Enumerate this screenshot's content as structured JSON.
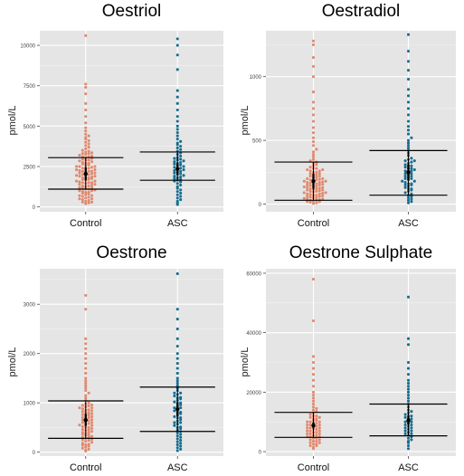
{
  "chart_data": [
    {
      "type": "scatter",
      "title": "Oestriol",
      "ylabel": "pmol/L",
      "xlabel": "",
      "categories": [
        "Control",
        "ASC"
      ],
      "yticks": [
        0,
        2500,
        5000,
        7500,
        10000
      ],
      "ytick_labels": [
        "0",
        "2500",
        "5000",
        "7500",
        "10000"
      ],
      "ylim": [
        -300,
        10900
      ],
      "grid": true,
      "series": [
        {
          "color": "#e0896f",
          "mean": 2050,
          "ci": [
            1650,
            2450
          ],
          "sd": [
            1100,
            3050
          ],
          "max_y": 10600,
          "values": [
            200,
            250,
            300,
            350,
            400,
            450,
            500,
            550,
            600,
            650,
            700,
            750,
            800,
            850,
            900,
            950,
            1000,
            1050,
            1100,
            1150,
            1200,
            1250,
            1300,
            1350,
            1400,
            1450,
            1500,
            1550,
            1600,
            1650,
            1700,
            1750,
            1800,
            1850,
            1900,
            1950,
            2000,
            2050,
            2100,
            2150,
            2200,
            2250,
            2300,
            2350,
            2400,
            2450,
            2500,
            2550,
            2600,
            2650,
            2700,
            2750,
            2800,
            2850,
            2900,
            2950,
            3000,
            3050,
            3100,
            3150,
            3200,
            3250,
            3300,
            3350,
            3400,
            3450,
            3500,
            3600,
            3700,
            3800,
            3900,
            4000,
            4100,
            4200,
            4300,
            4400,
            4500,
            4700,
            4900,
            5200,
            5600,
            6000,
            6400,
            7000,
            7400,
            7600,
            10600,
            300,
            500,
            700,
            900,
            1100,
            1300,
            1500,
            1700,
            1900,
            2100,
            2300,
            2500,
            2700,
            2900,
            3100,
            3300,
            1200,
            1400,
            1600,
            1800,
            2000,
            2200,
            2400,
            1000,
            1500,
            2000,
            2500,
            1800,
            2200
          ]
        },
        {
          "color": "#156d8f",
          "mean": 2350,
          "ci": [
            2000,
            2700
          ],
          "sd": [
            1650,
            3400
          ],
          "max_y": 10400,
          "values": [
            150,
            250,
            350,
            450,
            550,
            650,
            750,
            850,
            950,
            1050,
            1150,
            1250,
            1350,
            1450,
            1550,
            1650,
            1750,
            1850,
            1950,
            2050,
            2150,
            2250,
            2350,
            2450,
            2550,
            2650,
            2750,
            2850,
            2950,
            3050,
            3150,
            3250,
            3350,
            3450,
            3550,
            3650,
            3750,
            3850,
            3950,
            4050,
            4200,
            4400,
            4600,
            4800,
            5000,
            5300,
            5600,
            6000,
            6400,
            6800,
            7200,
            8500,
            9400,
            10000,
            10400,
            1800,
            2000,
            2200,
            2400,
            2600,
            2800,
            3000,
            1600,
            2100,
            2500,
            2900,
            1900,
            2300,
            2700,
            1700
          ]
        }
      ]
    },
    {
      "type": "scatter",
      "title": "Oestradiol",
      "ylabel": "pmol/L",
      "xlabel": "",
      "categories": [
        "Control",
        "ASC"
      ],
      "yticks": [
        0,
        500,
        1000
      ],
      "ytick_labels": [
        "0",
        "500",
        "1000"
      ],
      "ylim": [
        -60,
        1360
      ],
      "grid": true,
      "series": [
        {
          "color": "#e0896f",
          "mean": 180,
          "ci": [
            120,
            240
          ],
          "sd": [
            30,
            330
          ],
          "max_y": 1280,
          "values": [
            5,
            10,
            15,
            20,
            25,
            30,
            35,
            40,
            45,
            50,
            55,
            60,
            65,
            70,
            75,
            80,
            85,
            90,
            95,
            100,
            105,
            110,
            115,
            120,
            125,
            130,
            135,
            140,
            145,
            150,
            155,
            160,
            165,
            170,
            175,
            180,
            185,
            190,
            195,
            200,
            210,
            220,
            230,
            240,
            250,
            260,
            270,
            280,
            290,
            300,
            310,
            320,
            330,
            340,
            350,
            370,
            390,
            410,
            430,
            460,
            490,
            520,
            560,
            600,
            650,
            700,
            750,
            800,
            880,
            1000,
            1080,
            1150,
            1250,
            1280,
            20,
            40,
            60,
            80,
            100,
            120,
            140,
            160,
            180,
            200,
            220,
            240,
            260,
            280,
            50,
            90,
            130,
            170,
            210,
            250,
            30,
            70,
            110,
            150,
            190,
            230,
            270
          ]
        },
        {
          "color": "#156d8f",
          "mean": 250,
          "ci": [
            190,
            310
          ],
          "sd": [
            70,
            420
          ],
          "max_y": 1330,
          "values": [
            10,
            20,
            30,
            40,
            50,
            60,
            70,
            80,
            90,
            100,
            110,
            120,
            130,
            140,
            150,
            160,
            170,
            180,
            190,
            200,
            210,
            220,
            230,
            240,
            250,
            260,
            270,
            280,
            290,
            300,
            310,
            320,
            330,
            340,
            350,
            360,
            380,
            400,
            420,
            440,
            460,
            480,
            500,
            520,
            550,
            580,
            610,
            650,
            700,
            750,
            800,
            850,
            900,
            980,
            1050,
            1120,
            1200,
            1330,
            150,
            180,
            220,
            260,
            300,
            340,
            200,
            240,
            280,
            120,
            160
          ]
        }
      ]
    },
    {
      "type": "scatter",
      "title": "Oestrone",
      "ylabel": "pmol/L",
      "xlabel": "",
      "categories": [
        "Control",
        "ASC"
      ],
      "yticks": [
        0,
        1000,
        2000,
        3000
      ],
      "ytick_labels": [
        "0",
        "1000",
        "2000",
        "3000"
      ],
      "ylim": [
        -80,
        3720
      ],
      "grid": true,
      "series": [
        {
          "color": "#e0896f",
          "mean": 650,
          "ci": [
            530,
            780
          ],
          "sd": [
            280,
            1040
          ],
          "max_y": 3180,
          "values": [
            20,
            40,
            60,
            80,
            100,
            120,
            140,
            160,
            180,
            200,
            220,
            240,
            260,
            280,
            300,
            320,
            340,
            360,
            380,
            400,
            420,
            440,
            460,
            480,
            500,
            520,
            540,
            560,
            580,
            600,
            620,
            640,
            660,
            680,
            700,
            720,
            740,
            760,
            780,
            800,
            820,
            840,
            860,
            880,
            900,
            920,
            940,
            960,
            980,
            1000,
            1050,
            1100,
            1150,
            1200,
            1250,
            1300,
            1350,
            1400,
            1450,
            1500,
            1600,
            1700,
            1800,
            1900,
            2000,
            2100,
            2200,
            2300,
            2900,
            3180,
            150,
            250,
            350,
            450,
            550,
            650,
            750,
            850,
            950,
            300,
            500,
            700,
            900,
            400,
            600,
            800
          ]
        },
        {
          "color": "#156d8f",
          "mean": 870,
          "ci": [
            720,
            1010
          ],
          "sd": [
            420,
            1320
          ],
          "max_y": 3620,
          "values": [
            30,
            60,
            90,
            120,
            150,
            180,
            210,
            240,
            270,
            300,
            330,
            360,
            390,
            420,
            450,
            480,
            510,
            540,
            570,
            600,
            630,
            660,
            690,
            720,
            750,
            780,
            810,
            840,
            870,
            900,
            930,
            960,
            990,
            1020,
            1050,
            1080,
            1110,
            1140,
            1170,
            1200,
            1250,
            1300,
            1350,
            1400,
            1450,
            1500,
            1600,
            1700,
            1800,
            1900,
            2000,
            2150,
            2300,
            2500,
            2700,
            2900,
            3620,
            500,
            700,
            900,
            1100,
            800,
            1000,
            1200,
            600
          ]
        }
      ]
    },
    {
      "type": "scatter",
      "title": "Oestrone Sulphate",
      "ylabel": "pmol/L",
      "xlabel": "",
      "categories": [
        "Control",
        "ASC"
      ],
      "yticks": [
        0,
        20000,
        40000,
        60000
      ],
      "ytick_labels": [
        "0",
        "20000",
        "40000",
        "60000"
      ],
      "ylim": [
        -1500,
        61500
      ],
      "grid": true,
      "series": [
        {
          "color": "#e0896f",
          "mean": 8800,
          "ci": [
            7800,
            9900
          ],
          "sd": [
            4800,
            13200
          ],
          "max_y": 58000,
          "values": [
            1000,
            1500,
            2000,
            2500,
            3000,
            3500,
            4000,
            4500,
            5000,
            5500,
            6000,
            6500,
            7000,
            7500,
            8000,
            8500,
            9000,
            9500,
            10000,
            10500,
            11000,
            11500,
            12000,
            12500,
            13000,
            13500,
            14000,
            14500,
            15000,
            16000,
            17000,
            18000,
            19000,
            20000,
            22000,
            24000,
            26000,
            28000,
            30000,
            32000,
            44000,
            58000,
            2000,
            3000,
            4000,
            5000,
            6000,
            7000,
            8000,
            9000,
            10000,
            11000,
            12000,
            3500,
            5500,
            7500,
            9500,
            11500,
            4500,
            6500,
            8500,
            10500,
            2500,
            6000,
            8000,
            10000,
            5000,
            7000,
            9000
          ]
        },
        {
          "color": "#156d8f",
          "mean": 10500,
          "ci": [
            9000,
            12000
          ],
          "sd": [
            5300,
            16000
          ],
          "max_y": 52000,
          "values": [
            1000,
            2000,
            3000,
            4000,
            5000,
            6000,
            7000,
            8000,
            9000,
            10000,
            11000,
            12000,
            13000,
            14000,
            15000,
            16000,
            17000,
            18000,
            19000,
            20000,
            21000,
            22000,
            23000,
            24000,
            26000,
            28000,
            30000,
            36000,
            38000,
            52000,
            3500,
            5500,
            7500,
            9500,
            11500,
            13500,
            4500,
            6500,
            8500,
            10500,
            12500,
            6000,
            8000,
            10000,
            12000,
            7000,
            9000,
            11000
          ]
        }
      ]
    }
  ]
}
